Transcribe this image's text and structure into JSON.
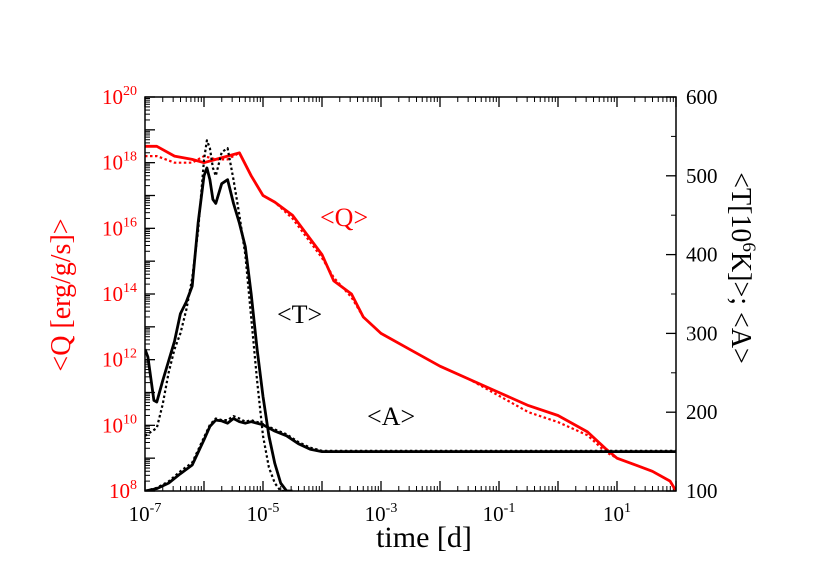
{
  "chart_data": {
    "type": "line",
    "title": "",
    "xlabel": "time [d]",
    "ylabel_left": "<Q [erg/g/s]>",
    "ylabel_right_parts": [
      "<T[10",
      "6",
      "K]>; <A>"
    ],
    "x_scale": "log",
    "xlim": [
      1e-07,
      100
    ],
    "y_left_scale": "log",
    "y_left_lim": [
      100000000.0,
      1e+20
    ],
    "y_right_scale": "linear",
    "y_right_lim": [
      100,
      600
    ],
    "x_ticks": [
      {
        "base": "10",
        "exp": "-7",
        "value": 1e-07
      },
      {
        "base": "10",
        "exp": "-5",
        "value": 1e-05
      },
      {
        "base": "10",
        "exp": "-3",
        "value": 0.001
      },
      {
        "base": "10",
        "exp": "-1",
        "value": 0.1
      },
      {
        "base": "10",
        "exp": "1",
        "value": 10
      }
    ],
    "y_left_ticks": [
      {
        "base": "10",
        "exp": "8",
        "value": 8
      },
      {
        "base": "10",
        "exp": "10",
        "value": 10
      },
      {
        "base": "10",
        "exp": "12",
        "value": 12
      },
      {
        "base": "10",
        "exp": "14",
        "value": 14
      },
      {
        "base": "10",
        "exp": "16",
        "value": 16
      },
      {
        "base": "10",
        "exp": "18",
        "value": 18
      },
      {
        "base": "10",
        "exp": "20",
        "value": 20
      }
    ],
    "y_right_ticks": [
      "100",
      "200",
      "300",
      "400",
      "500",
      "600"
    ],
    "annotations": [
      {
        "text": "<Q>",
        "series": "Q"
      },
      {
        "text": "<T>",
        "series": "T"
      },
      {
        "text": "<A>",
        "series": "A"
      }
    ],
    "colors": {
      "Q": "#ff0000",
      "T": "#000000",
      "A": "#000000"
    },
    "series": [
      {
        "name": "<Q>",
        "axis": "left",
        "style": "solid",
        "color": "#ff0000",
        "x_log10": [
          -7,
          -6.8,
          -6.5,
          -6.2,
          -6.0,
          -5.8,
          -5.6,
          -5.4,
          -5.2,
          -5.0,
          -4.8,
          -4.5,
          -4.0,
          -3.8,
          -3.5,
          -3.3,
          -3.0,
          -2.5,
          -2.0,
          -1.5,
          -1.0,
          -0.5,
          0.0,
          0.5,
          0.8,
          1.0,
          1.3,
          1.6,
          1.9,
          2.0
        ],
        "log10_y": [
          18.5,
          18.5,
          18.2,
          18.1,
          18.0,
          18.1,
          18.2,
          18.3,
          17.6,
          17.0,
          16.8,
          16.4,
          15.2,
          14.4,
          14.0,
          13.3,
          12.8,
          12.3,
          11.8,
          11.4,
          11.0,
          10.6,
          10.3,
          9.8,
          9.3,
          9.0,
          8.8,
          8.6,
          8.3,
          8.0
        ]
      },
      {
        "name": "<Q>",
        "axis": "left",
        "style": "dotted",
        "color": "#ff0000",
        "x_log10": [
          -7,
          -6.8,
          -6.5,
          -6.2,
          -6.0,
          -5.8,
          -5.6,
          -5.4,
          -5.2,
          -5.0,
          -4.8,
          -4.5,
          -4.0,
          -3.8,
          -3.5,
          -3.3,
          -3.0,
          -2.5,
          -2.0,
          -1.5,
          -1.0,
          -0.5,
          0.0,
          0.5,
          0.8,
          1.0,
          1.3,
          1.6,
          1.9,
          2.0
        ],
        "log10_y": [
          18.2,
          18.2,
          18.0,
          18.0,
          18.2,
          18.1,
          18.1,
          18.3,
          17.6,
          17.0,
          16.8,
          16.3,
          15.1,
          14.5,
          13.9,
          13.3,
          12.8,
          12.3,
          11.8,
          11.4,
          10.9,
          10.4,
          10.1,
          9.7,
          9.2,
          9.0,
          8.8,
          8.6,
          8.3,
          8.0
        ]
      },
      {
        "name": "<T>",
        "axis": "right",
        "style": "solid",
        "color": "#000000",
        "x_log10": [
          -7.0,
          -6.95,
          -6.85,
          -6.8,
          -6.7,
          -6.6,
          -6.5,
          -6.4,
          -6.3,
          -6.2,
          -6.1,
          -6.0,
          -5.95,
          -5.9,
          -5.85,
          -5.8,
          -5.7,
          -5.6,
          -5.5,
          -5.4,
          -5.3,
          -5.2,
          -5.1,
          -5.0,
          -4.9,
          -4.8,
          -4.7,
          -4.6,
          -4.5
        ],
        "y": [
          280,
          270,
          215,
          213,
          240,
          265,
          290,
          325,
          340,
          360,
          440,
          500,
          510,
          495,
          470,
          465,
          490,
          495,
          465,
          440,
          410,
          350,
          280,
          220,
          170,
          135,
          110,
          100,
          100
        ]
      },
      {
        "name": "<T>",
        "axis": "right",
        "style": "dotted",
        "color": "#000000",
        "x_log10": [
          -7.0,
          -6.8,
          -6.7,
          -6.6,
          -6.5,
          -6.4,
          -6.3,
          -6.2,
          -6.1,
          -6.0,
          -5.95,
          -5.9,
          -5.85,
          -5.8,
          -5.7,
          -5.6,
          -5.5,
          -5.4,
          -5.3,
          -5.2,
          -5.1,
          -5.0,
          -4.9,
          -4.8,
          -4.7,
          -4.6,
          -4.5
        ],
        "y": [
          170,
          180,
          210,
          250,
          280,
          300,
          330,
          370,
          430,
          520,
          545,
          535,
          510,
          500,
          530,
          535,
          495,
          450,
          400,
          320,
          240,
          170,
          130,
          110,
          100,
          100,
          100
        ]
      },
      {
        "name": "<A>",
        "axis": "right",
        "style": "solid",
        "color": "#000000",
        "x_log10": [
          -7.0,
          -6.8,
          -6.6,
          -6.4,
          -6.2,
          -6.0,
          -5.9,
          -5.8,
          -5.7,
          -5.6,
          -5.5,
          -5.4,
          -5.3,
          -5.2,
          -5.0,
          -4.8,
          -4.6,
          -4.4,
          -4.2,
          -4.0,
          -3.8,
          -3.0,
          -2.0,
          -1.0,
          0.0,
          1.0,
          2.0
        ],
        "y": [
          100,
          103,
          110,
          122,
          133,
          165,
          182,
          190,
          189,
          186,
          192,
          188,
          186,
          188,
          184,
          176,
          170,
          160,
          153,
          150,
          150,
          150,
          150,
          150,
          150,
          150,
          150
        ]
      },
      {
        "name": "<A>",
        "axis": "right",
        "style": "dotted",
        "color": "#000000",
        "x_log10": [
          -7.0,
          -6.8,
          -6.6,
          -6.4,
          -6.2,
          -6.0,
          -5.9,
          -5.8,
          -5.7,
          -5.6,
          -5.5,
          -5.4,
          -5.3,
          -5.2,
          -5.0,
          -4.8,
          -4.6,
          -4.4,
          -4.2,
          -4.0,
          -3.8,
          -3.0,
          -2.0,
          -1.0,
          0.0,
          1.0,
          2.0
        ],
        "y": [
          100,
          104,
          112,
          125,
          136,
          168,
          184,
          192,
          190,
          190,
          195,
          192,
          188,
          190,
          185,
          178,
          172,
          162,
          155,
          151,
          151,
          151,
          151,
          151,
          151,
          151,
          151
        ]
      }
    ]
  }
}
